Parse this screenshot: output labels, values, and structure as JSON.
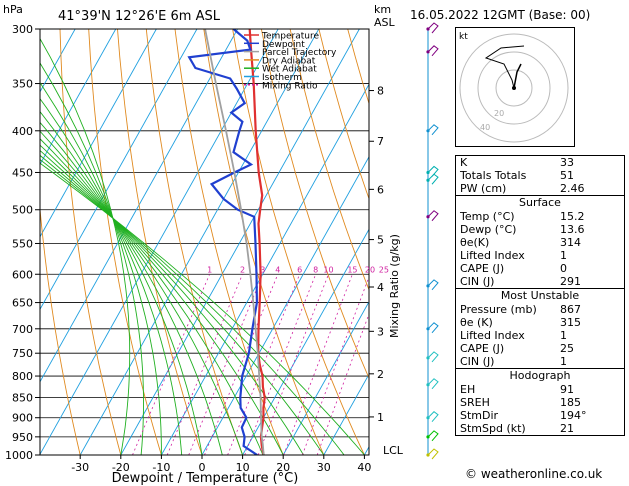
{
  "header": {
    "units_p": "hPa",
    "location": "41°39'N  12°26'E  6m  ASL",
    "units_km": "km",
    "units_asl": "ASL",
    "datetime": "16.05.2022  12GMT  (Base: 00)"
  },
  "chart_data": {
    "type": "line",
    "title": "41°39'N  12°26'E  6m  ASL",
    "xlabel": "Dewpoint / Temperature (°C)",
    "ylabel": "hPa",
    "right_label": "Mixing Ratio (g/kg)",
    "xlim": [
      -35,
      40
    ],
    "ylim": [
      1000,
      300
    ],
    "x_ticks": [
      "-30",
      "-20",
      "-10",
      "0",
      "10",
      "20",
      "30",
      "40"
    ],
    "p_ticks": [
      "300",
      "350",
      "400",
      "450",
      "500",
      "550",
      "600",
      "650",
      "700",
      "750",
      "800",
      "850",
      "900",
      "950",
      "1000"
    ],
    "km_ticks": [
      {
        "label": "8",
        "p": 357
      },
      {
        "label": "7",
        "p": 412
      },
      {
        "label": "6",
        "p": 472
      },
      {
        "label": "5",
        "p": 544
      },
      {
        "label": "4",
        "p": 622
      },
      {
        "label": "3",
        "p": 705
      },
      {
        "label": "2",
        "p": 795
      },
      {
        "label": "1",
        "p": 898
      }
    ],
    "lcl_label": "LCL",
    "mixing_ratio_labels": [
      "1",
      "2",
      "3",
      "4",
      "6",
      "8",
      "10",
      "15",
      "20",
      "25"
    ],
    "legend": [
      "Temperature",
      "Dewpoint",
      "Parcel Trajectory",
      "Dry Adiabat",
      "Wet Adiabat",
      "Isotherm",
      "Mixing Ratio"
    ],
    "legend_position": "top-center",
    "series": [
      {
        "name": "Temperature",
        "color": "#e03030",
        "points": [
          [
            1000,
            15.2
          ],
          [
            975,
            13.5
          ],
          [
            950,
            12.0
          ],
          [
            925,
            11.0
          ],
          [
            900,
            10.0
          ],
          [
            875,
            8.6
          ],
          [
            850,
            7.5
          ],
          [
            825,
            5.6
          ],
          [
            800,
            4.0
          ],
          [
            775,
            1.8
          ],
          [
            750,
            -0.2
          ],
          [
            700,
            -3.5
          ],
          [
            650,
            -6.8
          ],
          [
            600,
            -10.5
          ],
          [
            550,
            -15.0
          ],
          [
            520,
            -18.0
          ],
          [
            500,
            -19.5
          ],
          [
            480,
            -21.0
          ],
          [
            450,
            -25.0
          ],
          [
            400,
            -31.5
          ],
          [
            350,
            -38.5
          ],
          [
            320,
            -43.5
          ],
          [
            300,
            -47.0
          ]
        ]
      },
      {
        "name": "Dewpoint",
        "color": "#2040d0",
        "points": [
          [
            1000,
            13.6
          ],
          [
            975,
            9.0
          ],
          [
            950,
            8.0
          ],
          [
            925,
            6.0
          ],
          [
            900,
            5.8
          ],
          [
            875,
            3.0
          ],
          [
            850,
            1.5
          ],
          [
            800,
            -1.0
          ],
          [
            750,
            -2.5
          ],
          [
            700,
            -5.0
          ],
          [
            650,
            -7.5
          ],
          [
            600,
            -11.5
          ],
          [
            550,
            -16.0
          ],
          [
            510,
            -20.0
          ],
          [
            500,
            -25.0
          ],
          [
            485,
            -30.0
          ],
          [
            465,
            -35.0
          ],
          [
            450,
            -31.0
          ],
          [
            440,
            -28.0
          ],
          [
            425,
            -34.0
          ],
          [
            400,
            -35.5
          ],
          [
            390,
            -36.0
          ],
          [
            380,
            -40.0
          ],
          [
            370,
            -38.0
          ],
          [
            355,
            -42.0
          ],
          [
            345,
            -45.0
          ],
          [
            335,
            -55.0
          ],
          [
            325,
            -58.0
          ],
          [
            318,
            -44.0
          ],
          [
            310,
            -46.0
          ],
          [
            300,
            -51.0
          ]
        ]
      },
      {
        "name": "Parcel Trajectory",
        "color": "#a0a0a0",
        "points": [
          [
            1000,
            15.2
          ],
          [
            970,
            13.5
          ],
          [
            950,
            12.2
          ],
          [
            900,
            9.4
          ],
          [
            850,
            6.5
          ],
          [
            800,
            3.2
          ],
          [
            750,
            -0.3
          ],
          [
            700,
            -4.2
          ],
          [
            650,
            -8.4
          ],
          [
            600,
            -13.0
          ],
          [
            550,
            -18.2
          ],
          [
            500,
            -24.2
          ],
          [
            450,
            -31.0
          ],
          [
            400,
            -38.8
          ],
          [
            350,
            -47.8
          ],
          [
            300,
            -58.0
          ]
        ]
      }
    ]
  },
  "wind_barbs": {
    "colors": [
      "#800080",
      "#800080",
      "#1090d0",
      "#00b0b0",
      "#00b0b0",
      "#800080",
      "#1090d0",
      "#1090d0",
      "#20c0c0",
      "#20c0c0",
      "#20c0c0",
      "#00c000",
      "#c0c000"
    ]
  },
  "hodograph": {
    "label": "kt",
    "rings": [
      "20",
      "40"
    ]
  },
  "indices": [
    {
      "label": "K",
      "value": "33"
    },
    {
      "label": "Totals Totals",
      "value": "51"
    },
    {
      "label": "PW (cm)",
      "value": "2.46"
    }
  ],
  "surface": {
    "title": "Surface",
    "rows": [
      {
        "label": "Temp (°C)",
        "value": "15.2"
      },
      {
        "label": "Dewp (°C)",
        "value": "13.6"
      },
      {
        "label": "θe(K)",
        "value": "314"
      },
      {
        "label": "Lifted Index",
        "value": "1"
      },
      {
        "label": "CAPE (J)",
        "value": "0"
      },
      {
        "label": "CIN (J)",
        "value": "291"
      }
    ]
  },
  "most_unstable": {
    "title": "Most Unstable",
    "rows": [
      {
        "label": "Pressure (mb)",
        "value": "867"
      },
      {
        "label": "θe (K)",
        "value": "315"
      },
      {
        "label": "Lifted Index",
        "value": "1"
      },
      {
        "label": "CAPE (J)",
        "value": "25"
      },
      {
        "label": "CIN (J)",
        "value": "1"
      }
    ]
  },
  "hodograph_stats": {
    "title": "Hodograph",
    "rows": [
      {
        "label": "EH",
        "value": "91"
      },
      {
        "label": "SREH",
        "value": "185"
      },
      {
        "label": "StmDir",
        "value": "194°"
      },
      {
        "label": "StmSpd (kt)",
        "value": "21"
      }
    ]
  },
  "credit": "© weatheronline.co.uk"
}
